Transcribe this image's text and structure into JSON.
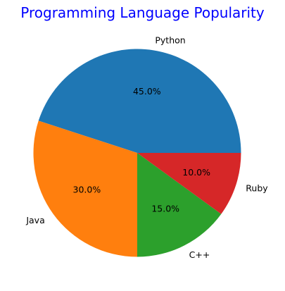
{
  "title": "Programming Language Popularity",
  "colors": {
    "title": "#0000ff",
    "background": "#ffffff",
    "text": "#000000"
  },
  "chart_data": {
    "type": "pie",
    "title": "Programming Language Popularity",
    "start_angle_deg": 0,
    "direction": "counterclockwise",
    "legend": "none",
    "slices": [
      {
        "label": "Python",
        "value": 45.0,
        "pct_label": "45.0%",
        "color": "#1f77b4"
      },
      {
        "label": "Java",
        "value": 30.0,
        "pct_label": "30.0%",
        "color": "#ff7f0e"
      },
      {
        "label": "C++",
        "value": 15.0,
        "pct_label": "15.0%",
        "color": "#2ca02c"
      },
      {
        "label": "Ruby",
        "value": 10.0,
        "pct_label": "10.0%",
        "color": "#d62728"
      }
    ]
  }
}
